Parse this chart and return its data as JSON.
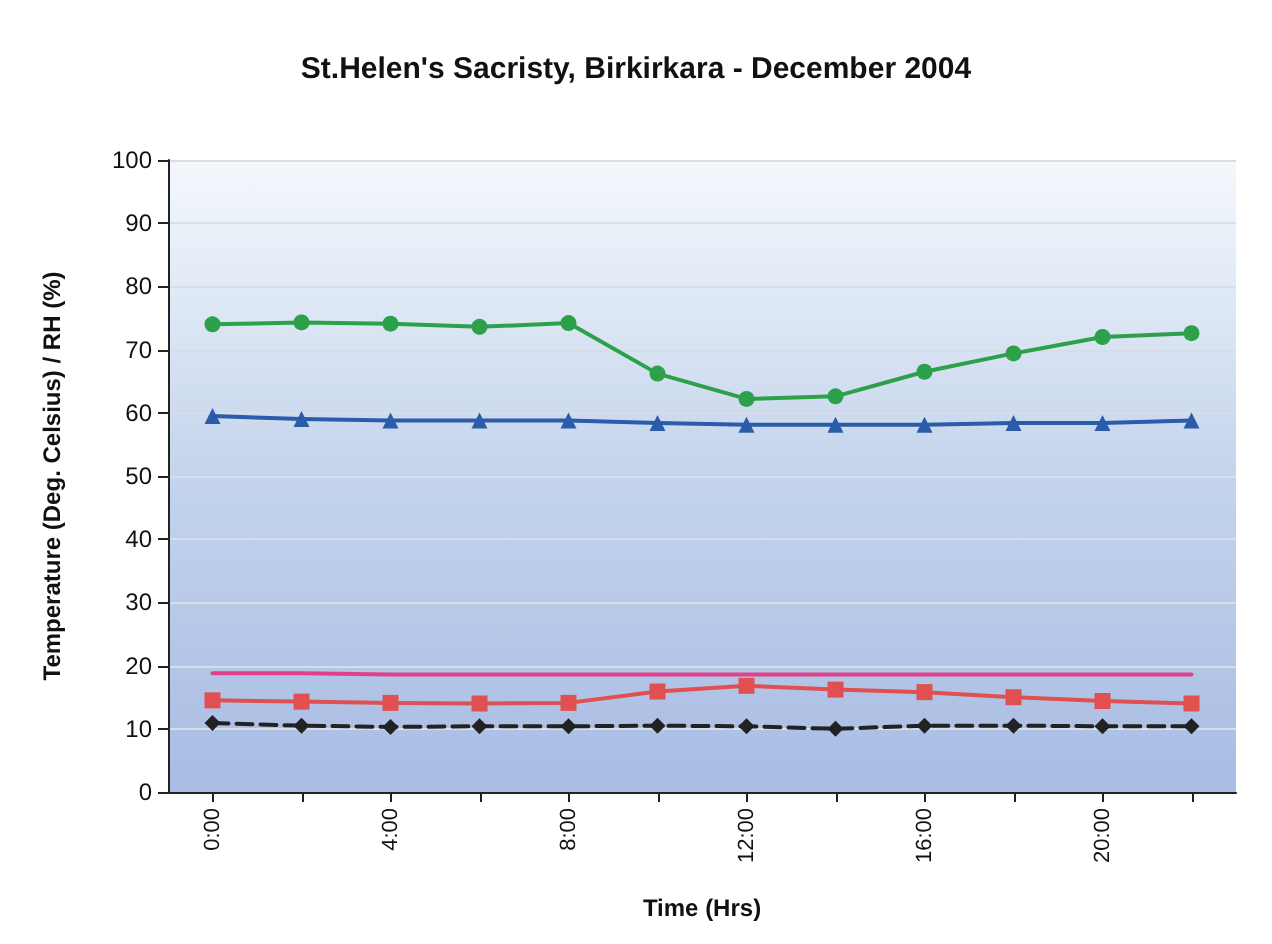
{
  "chart_data": {
    "type": "line",
    "title": "St.Helen's Sacristy, Birkirkara - December 2004",
    "xlabel": "Time (Hrs)",
    "ylabel": "Temperature (Deg. Celsius) / RH (%)",
    "categories": [
      "0:00",
      null,
      "4:00",
      null,
      "8:00",
      null,
      "12:00",
      null,
      "16:00",
      null,
      "20:00",
      null
    ],
    "series": [
      {
        "color": "#2ca04a",
        "marker": "circle",
        "line_style": "solid",
        "values": [
          74,
          74.3,
          74.1,
          73.6,
          74.2,
          66.2,
          62.2,
          62.6,
          66.5,
          69.4,
          72,
          72.6
        ]
      },
      {
        "color": "#2a5caa",
        "marker": "triangle",
        "line_style": "solid",
        "values": [
          59.5,
          59,
          58.8,
          58.8,
          58.8,
          58.4,
          58.1,
          58.1,
          58.1,
          58.4,
          58.4,
          58.8
        ]
      },
      {
        "color": "#e0408a",
        "marker": "none",
        "line_style": "solid",
        "values": [
          18.8,
          18.8,
          18.6,
          18.6,
          18.6,
          18.6,
          18.6,
          18.6,
          18.6,
          18.6,
          18.6,
          18.6
        ]
      },
      {
        "color": "#e05050",
        "marker": "square",
        "line_style": "solid",
        "values": [
          14.5,
          14.3,
          14.1,
          14,
          14.1,
          15.9,
          16.8,
          16.2,
          15.8,
          15,
          14.4,
          14
        ]
      },
      {
        "color": "#222222",
        "marker": "diamond",
        "line_style": "dashed",
        "values": [
          10.9,
          10.5,
          10.3,
          10.4,
          10.4,
          10.5,
          10.4,
          10,
          10.5,
          10.5,
          10.4,
          10.4
        ]
      }
    ],
    "ylim": [
      0,
      100
    ],
    "yticks": [
      0,
      10,
      20,
      30,
      40,
      50,
      60,
      70,
      80,
      90,
      100
    ],
    "grid": "y"
  }
}
